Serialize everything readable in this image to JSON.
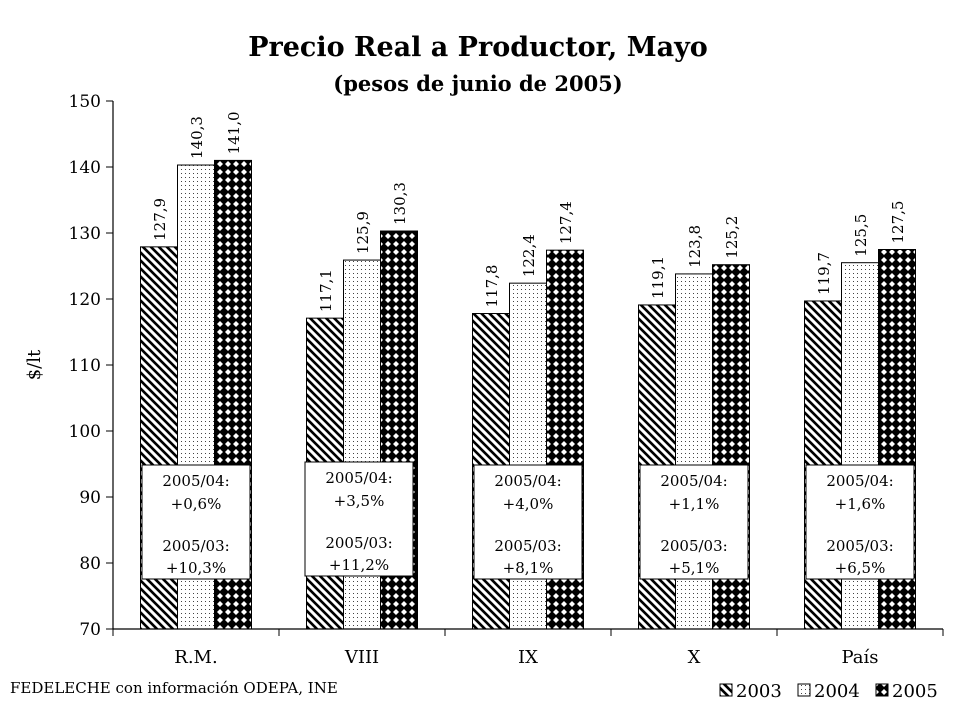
{
  "chart_data": {
    "type": "bar",
    "title": "Precio Real a Productor, Mayo",
    "subtitle": "(pesos de junio de 2005)",
    "xlabel": "",
    "ylabel": "$/lt",
    "ylim": [
      70,
      150
    ],
    "yticks": [
      "70",
      "80",
      "90",
      "100",
      "110",
      "120",
      "130",
      "140",
      "150"
    ],
    "categories": [
      "R.M.",
      "VIII",
      "IX",
      "X",
      "País"
    ],
    "series": [
      {
        "name": "2003",
        "values": [
          127.9,
          117.1,
          117.8,
          119.1,
          119.7
        ],
        "labels": [
          "127,9",
          "117,1",
          "117,8",
          "119,1",
          "119,7"
        ]
      },
      {
        "name": "2004",
        "values": [
          140.3,
          125.9,
          122.4,
          123.8,
          125.5
        ],
        "labels": [
          "140,3",
          "125,9",
          "122,4",
          "123,8",
          "125,5"
        ]
      },
      {
        "name": "2005",
        "values": [
          141.0,
          130.3,
          127.4,
          125.2,
          127.5
        ],
        "labels": [
          "141,0",
          "130,3",
          "127,4",
          "125,2",
          "127,5"
        ]
      }
    ],
    "annotations": [
      {
        "line1": "2005/04:",
        "line2": "+0,6%",
        "line3": "2005/03:",
        "line4": "+10,3%"
      },
      {
        "line1": "2005/04:",
        "line2": "+3,5%",
        "line3": "2005/03:",
        "line4": "+11,2%"
      },
      {
        "line1": "2005/04:",
        "line2": "+4,0%",
        "line3": "2005/03:",
        "line4": "+8,1%"
      },
      {
        "line1": "2005/04:",
        "line2": "+1,1%",
        "line3": "2005/03:",
        "line4": "+5,1%"
      },
      {
        "line1": "2005/04:",
        "line2": "+1,6%",
        "line3": "2005/03:",
        "line4": "+6,5%"
      }
    ],
    "legend_position": "bottom-right",
    "grid": false
  },
  "source": "FEDELECHE con información ODEPA, INE"
}
